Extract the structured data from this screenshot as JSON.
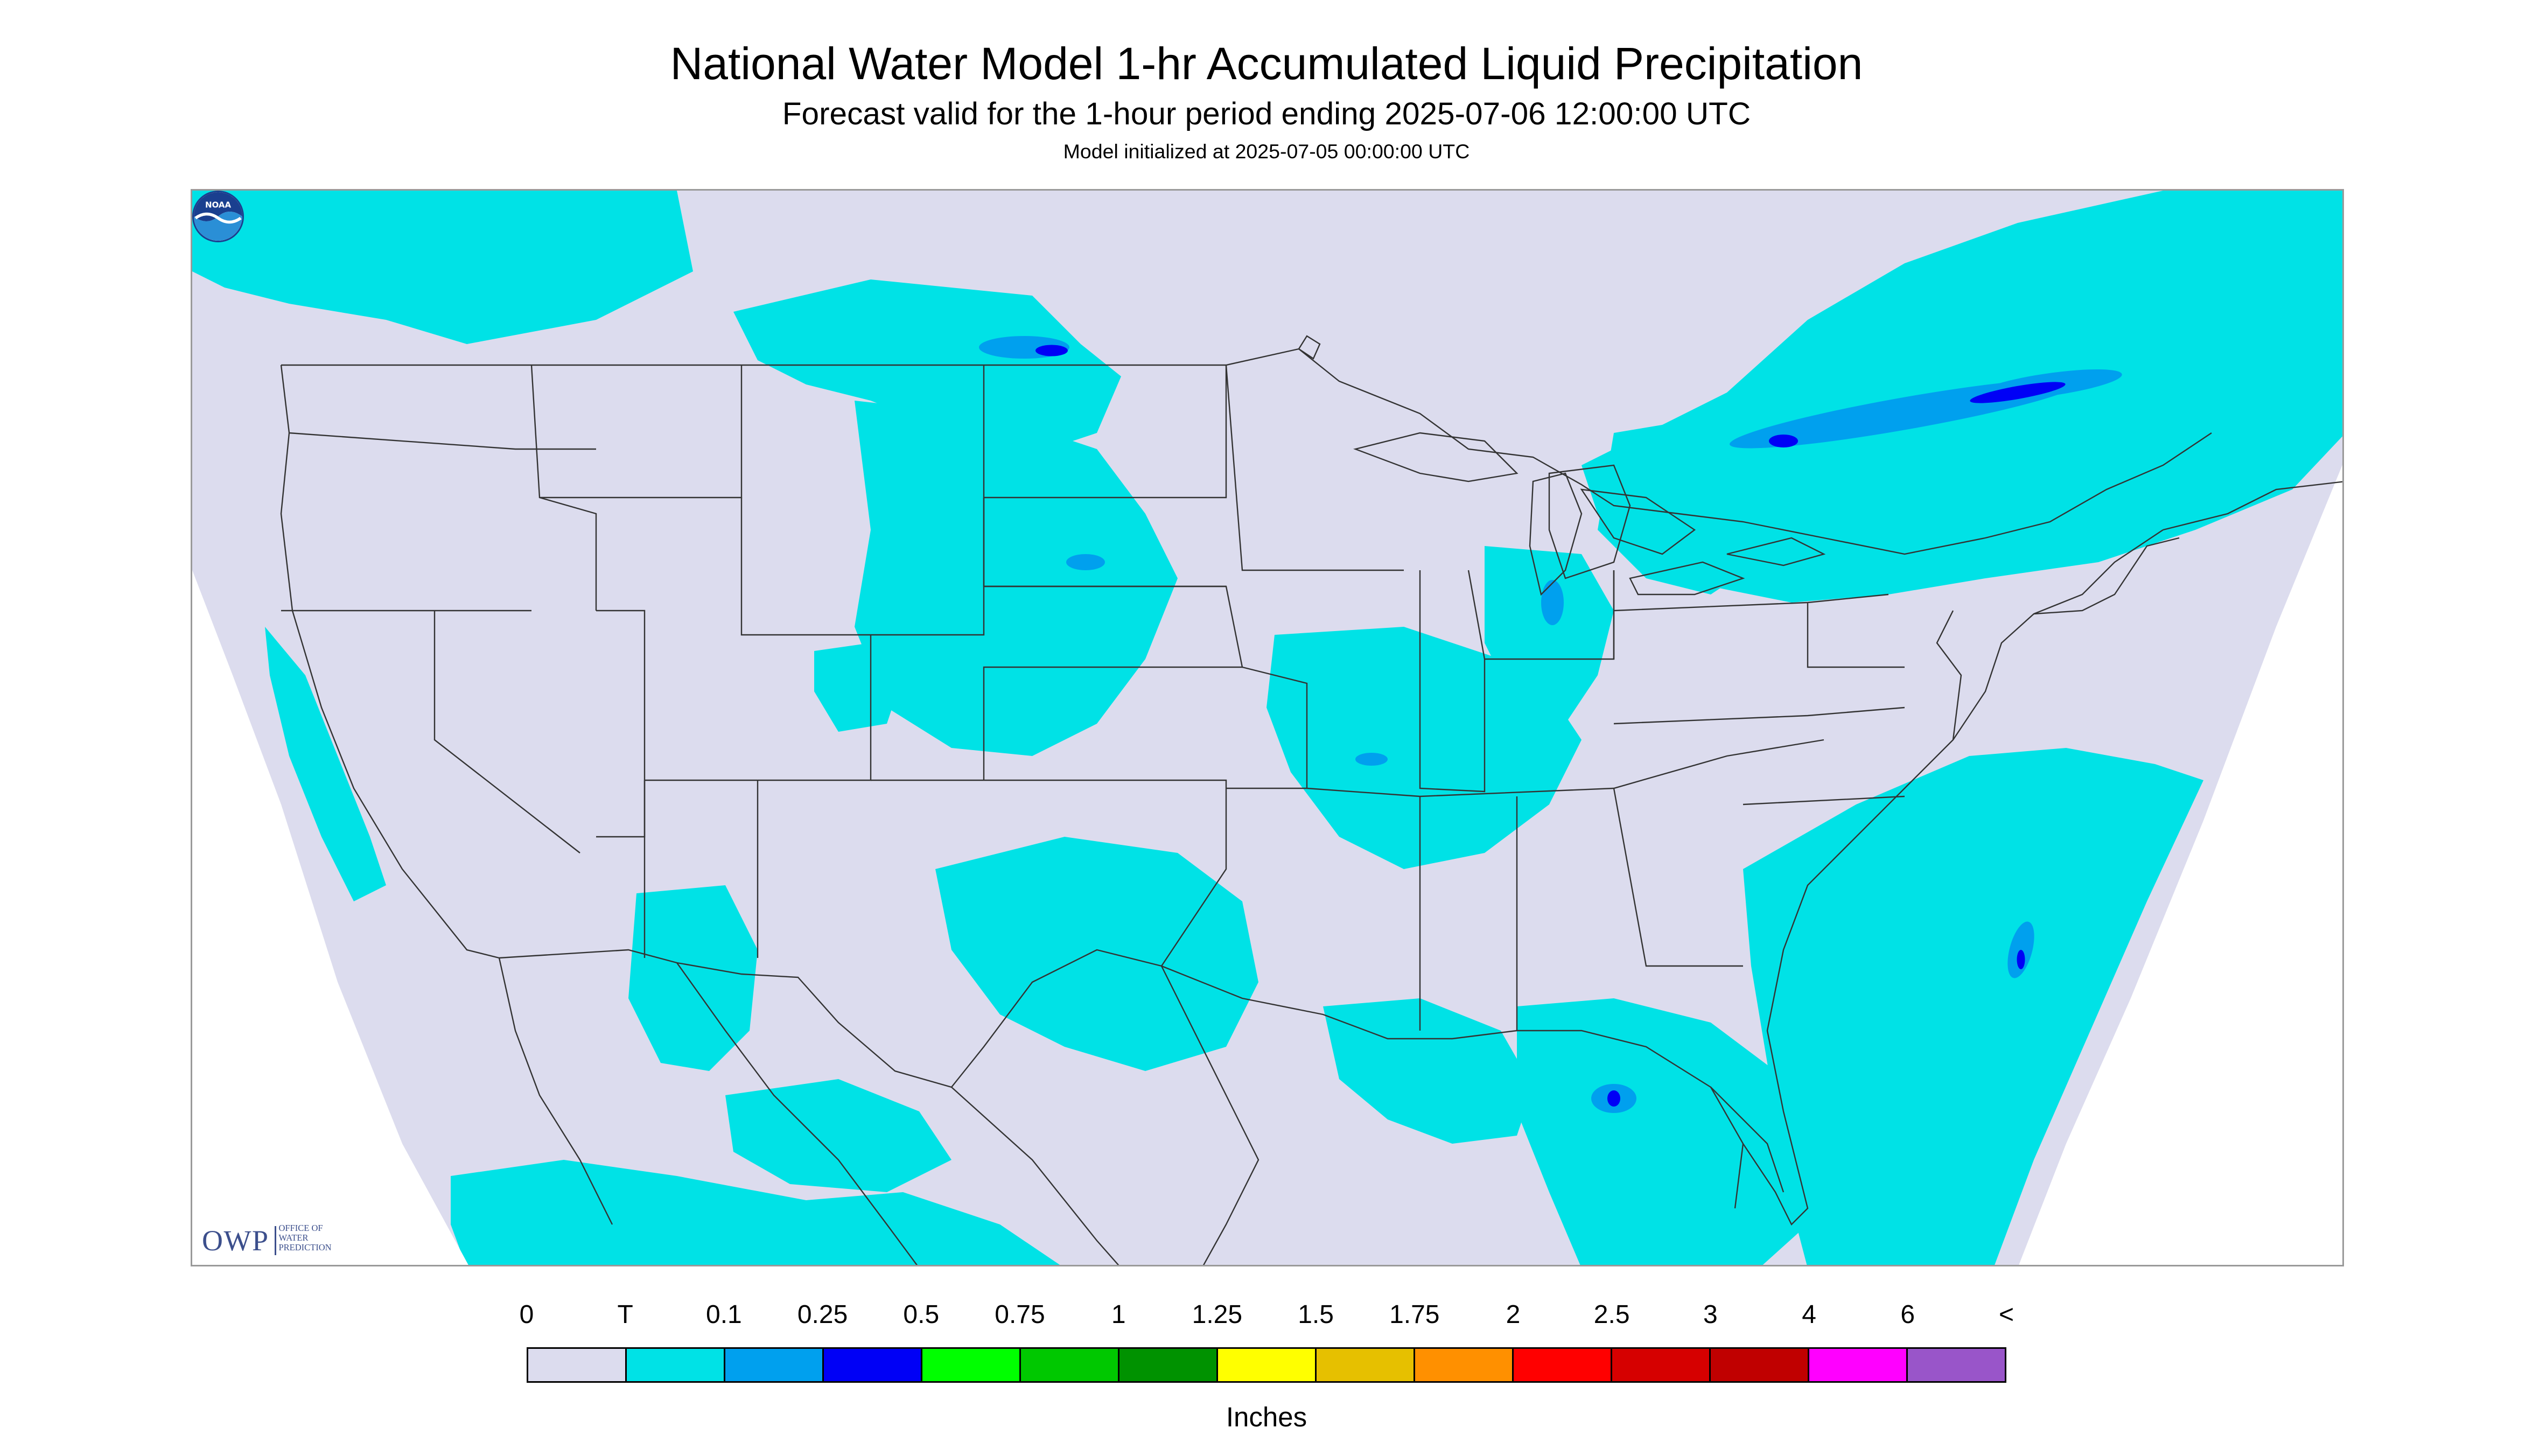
{
  "title": "National Water Model 1-hr Accumulated Liquid Precipitation",
  "subtitle": "Forecast valid for the 1-hour period ending 2025-07-06 12:00:00 UTC",
  "init_line": "Model initialized at 2025-07-05 00:00:00 UTC",
  "logos": {
    "owp_mark": "OWP",
    "owp_sub": [
      "Office of",
      "Water",
      "Prediction"
    ],
    "noaa_text": "NOAA"
  },
  "legend": {
    "labels": [
      "0",
      "T",
      "0.1",
      "0.25",
      "0.5",
      "0.75",
      "1",
      "1.25",
      "1.5",
      "1.75",
      "2",
      "2.5",
      "3",
      "4",
      "6",
      "<"
    ],
    "colors": [
      "#dcdcee",
      "#00e2e6",
      "#00a0ee",
      "#0000f6",
      "#00ff00",
      "#00c800",
      "#009200",
      "#ffff00",
      "#e6c000",
      "#ff9000",
      "#ff0000",
      "#d60000",
      "#c00000",
      "#ff00ff",
      "#9955c9"
    ],
    "units": "Inches"
  },
  "map": {
    "no_data_color": "#dcdcee",
    "trace_color": "#00e2e6",
    "light_color": "#00a0ee",
    "heavy_color": "#0000f6",
    "boundary_color": "#333333"
  }
}
